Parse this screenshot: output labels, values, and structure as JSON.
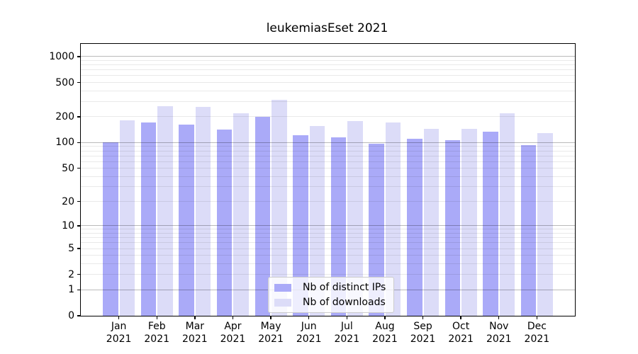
{
  "figure": {
    "background": "#ffffff"
  },
  "chart_data": {
    "type": "bar",
    "title": "leukemiasEset 2021",
    "categories": [
      "Jan 2021",
      "Feb 2021",
      "Mar 2021",
      "Apr 2021",
      "May 2021",
      "Jun 2021",
      "Jul 2021",
      "Aug 2021",
      "Sep 2021",
      "Oct 2021",
      "Nov 2021",
      "Dec 2021"
    ],
    "series": [
      {
        "name": "Nb of distinct IPs",
        "color": "#aaaaf8",
        "values": [
          100,
          171,
          162,
          143,
          200,
          122,
          116,
          97,
          110,
          106,
          133,
          93
        ]
      },
      {
        "name": "Nb of downloads",
        "color": "#dcdcf8",
        "values": [
          180,
          265,
          260,
          220,
          315,
          156,
          178,
          171,
          144,
          145,
          220,
          129
        ]
      }
    ],
    "xlabel": "",
    "ylabel": "",
    "yscale": "log1p",
    "ylim": [
      0,
      1400
    ],
    "yticks": [
      0,
      1,
      2,
      5,
      10,
      20,
      50,
      100,
      200,
      500,
      1000
    ],
    "grid": {
      "major_values": [
        1,
        10,
        100,
        1000
      ],
      "minor_values": [
        2,
        3,
        4,
        5,
        6,
        7,
        8,
        9,
        20,
        30,
        40,
        50,
        60,
        70,
        80,
        90,
        200,
        300,
        400,
        500,
        600,
        700,
        800,
        900
      ]
    },
    "legend": {
      "position": "lower center",
      "entries": [
        "Nb of distinct IPs",
        "Nb of downloads"
      ]
    },
    "colors": {
      "grid_minor": "rgba(0,0,0,0.085)",
      "grid_major": "rgba(0,0,0,0.27)",
      "spine": "#000000",
      "legend_border": "#cccccc"
    }
  }
}
